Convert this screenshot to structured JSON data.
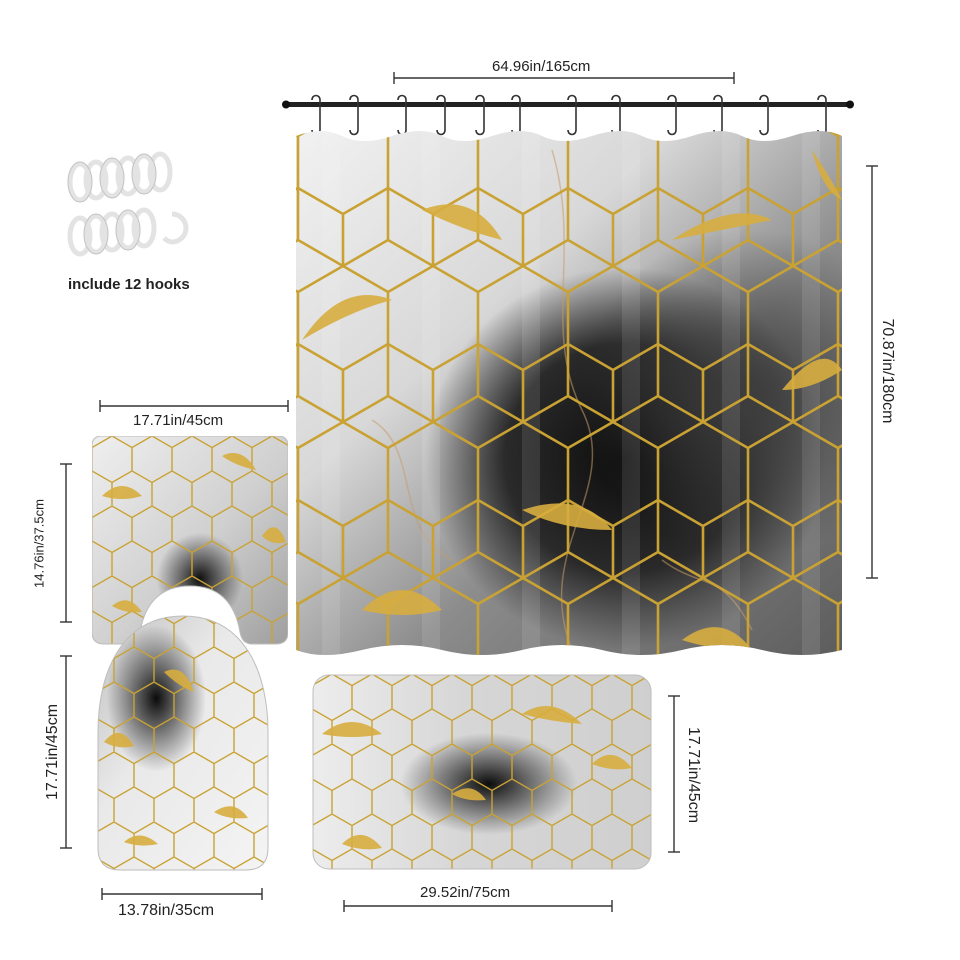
{
  "hooks": {
    "caption": "include 12 hooks",
    "count": 12
  },
  "dimensions": {
    "curtain_width": "64.96in/165cm",
    "curtain_height": "70.87in/180cm",
    "contour_width": "17.71in/45cm",
    "contour_height": "14.76in/37.5cm",
    "lid_height": "17.71in/45cm",
    "lid_width": "13.78in/35cm",
    "rug_width": "29.52in/75cm",
    "rug_height": "17.71in/45cm"
  },
  "colors": {
    "gold": "#c9a233",
    "marble_light": "#e9e9e9",
    "marble_mid": "#a9a9a9",
    "marble_dark": "#141414",
    "rod": "#222222"
  }
}
